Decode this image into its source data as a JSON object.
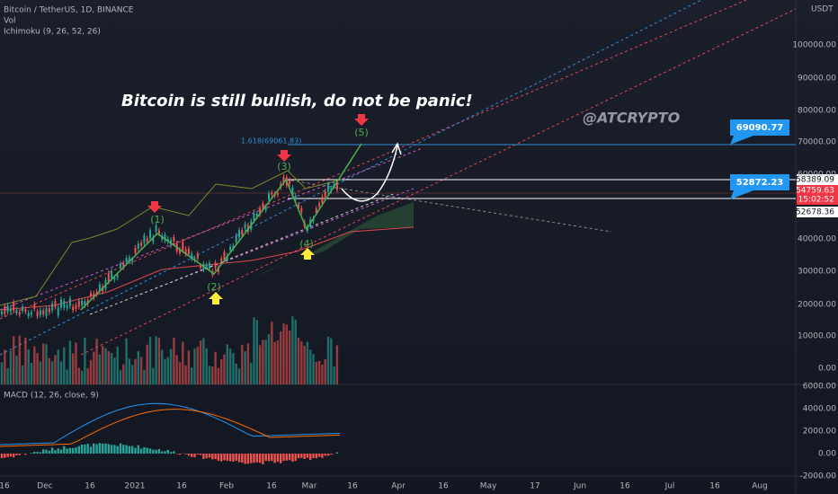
{
  "header": {
    "symbol": "Bitcoin / TetherUS, 1D, BINANCE",
    "volume": "Vol",
    "ichimoku": "Ichimoku (9, 26, 52, 26)",
    "currency": "USDT"
  },
  "price_axis": {
    "labels": [
      "100000.00",
      "90000.00",
      "80000.00",
      "70000.00",
      "60000.00",
      "40000.00",
      "30000.00",
      "20000.00",
      "10000.00",
      "0.00"
    ],
    "markers": {
      "high_line": "58389.09",
      "last_price": "54759.63",
      "countdown": "15:02:52",
      "low_line": "52678.36"
    }
  },
  "macd": {
    "title": "MACD (12, 26, close, 9)",
    "labels": [
      "6000.00",
      "4000.00",
      "2000.00",
      "0.00",
      "-2000.00"
    ]
  },
  "time_axis": {
    "labels": [
      "16",
      "Dec",
      "16",
      "2021",
      "16",
      "Feb",
      "16",
      "Mar",
      "16",
      "Apr",
      "16",
      "May",
      "17",
      "Jun",
      "16",
      "Jul",
      "16",
      "Aug"
    ]
  },
  "annotations": {
    "headline": "Bitcoin is still bullish, do not be panic!",
    "watermark": "@ATCRYPTO",
    "fib": "1.618(69061.83)",
    "target": "69090.77",
    "support": "52872.23",
    "waves": [
      "(1)",
      "(2)",
      "(3)",
      "(4)",
      "(5)"
    ]
  }
}
